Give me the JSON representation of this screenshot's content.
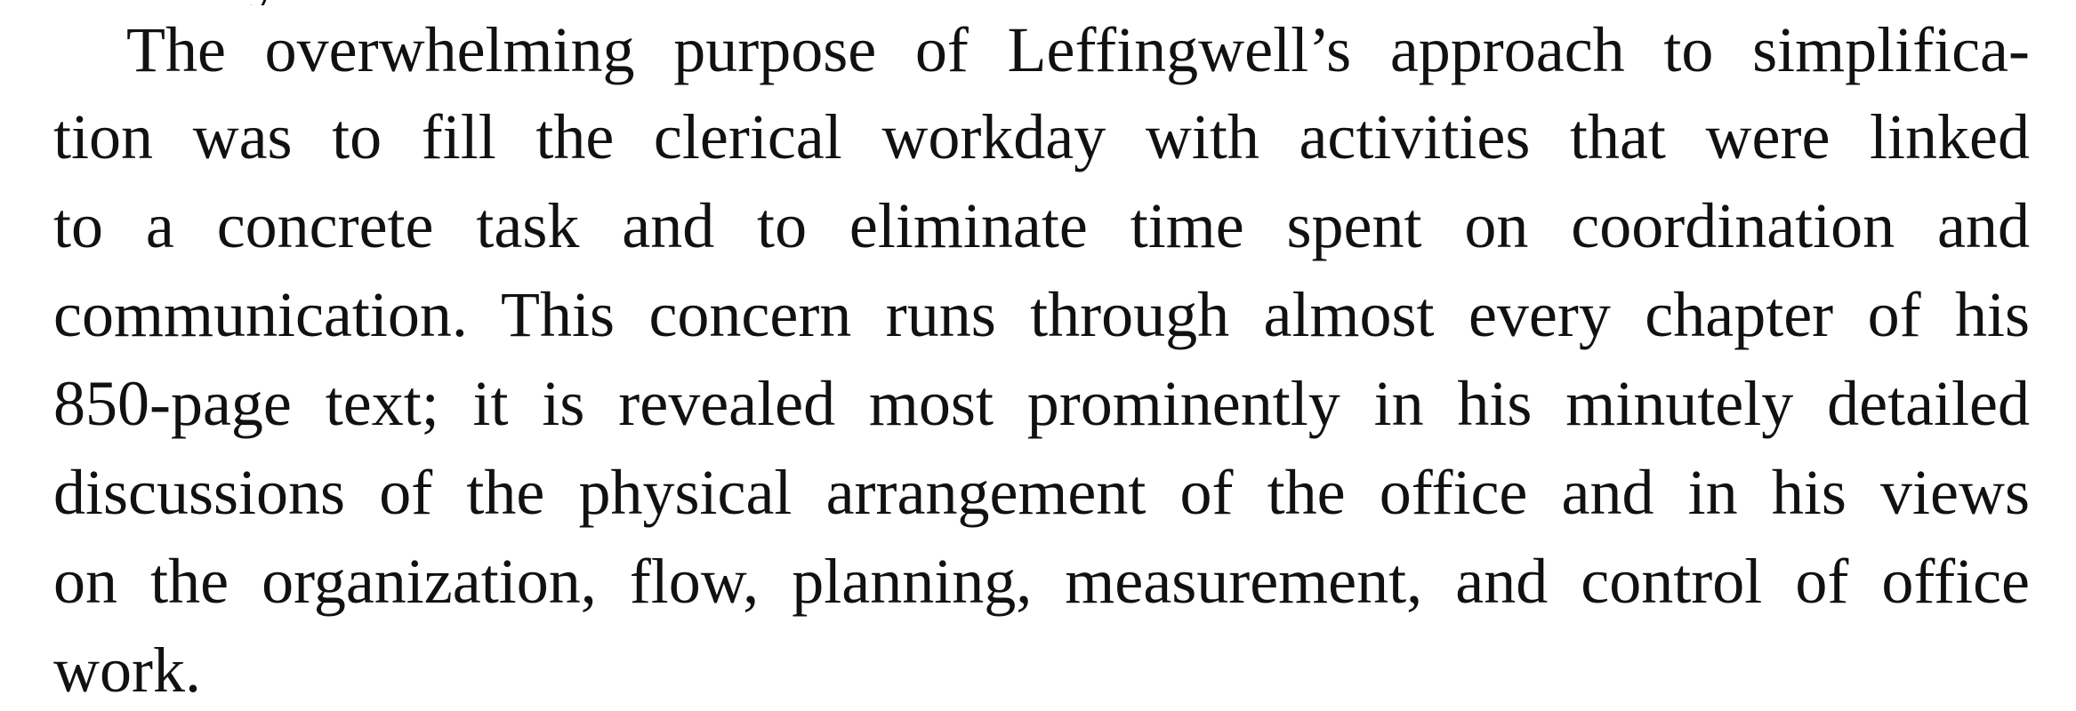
{
  "fragment": {
    "text": "y"
  },
  "paragraph": {
    "lines": [
      "The overwhelming purpose of Leffingwell’s approach to simplifica-",
      "tion was to fill the clerical workday with activities that were linked",
      "to a concrete task and to eliminate time spent on coordination and",
      "communication. This concern runs through almost every chapter of his",
      "850-page text; it is revealed most prominently in his minutely detailed",
      "discussions of the physical arrangement of the office and in his views",
      "on the organization, flow, planning, measurement, and control of office",
      "work."
    ]
  }
}
